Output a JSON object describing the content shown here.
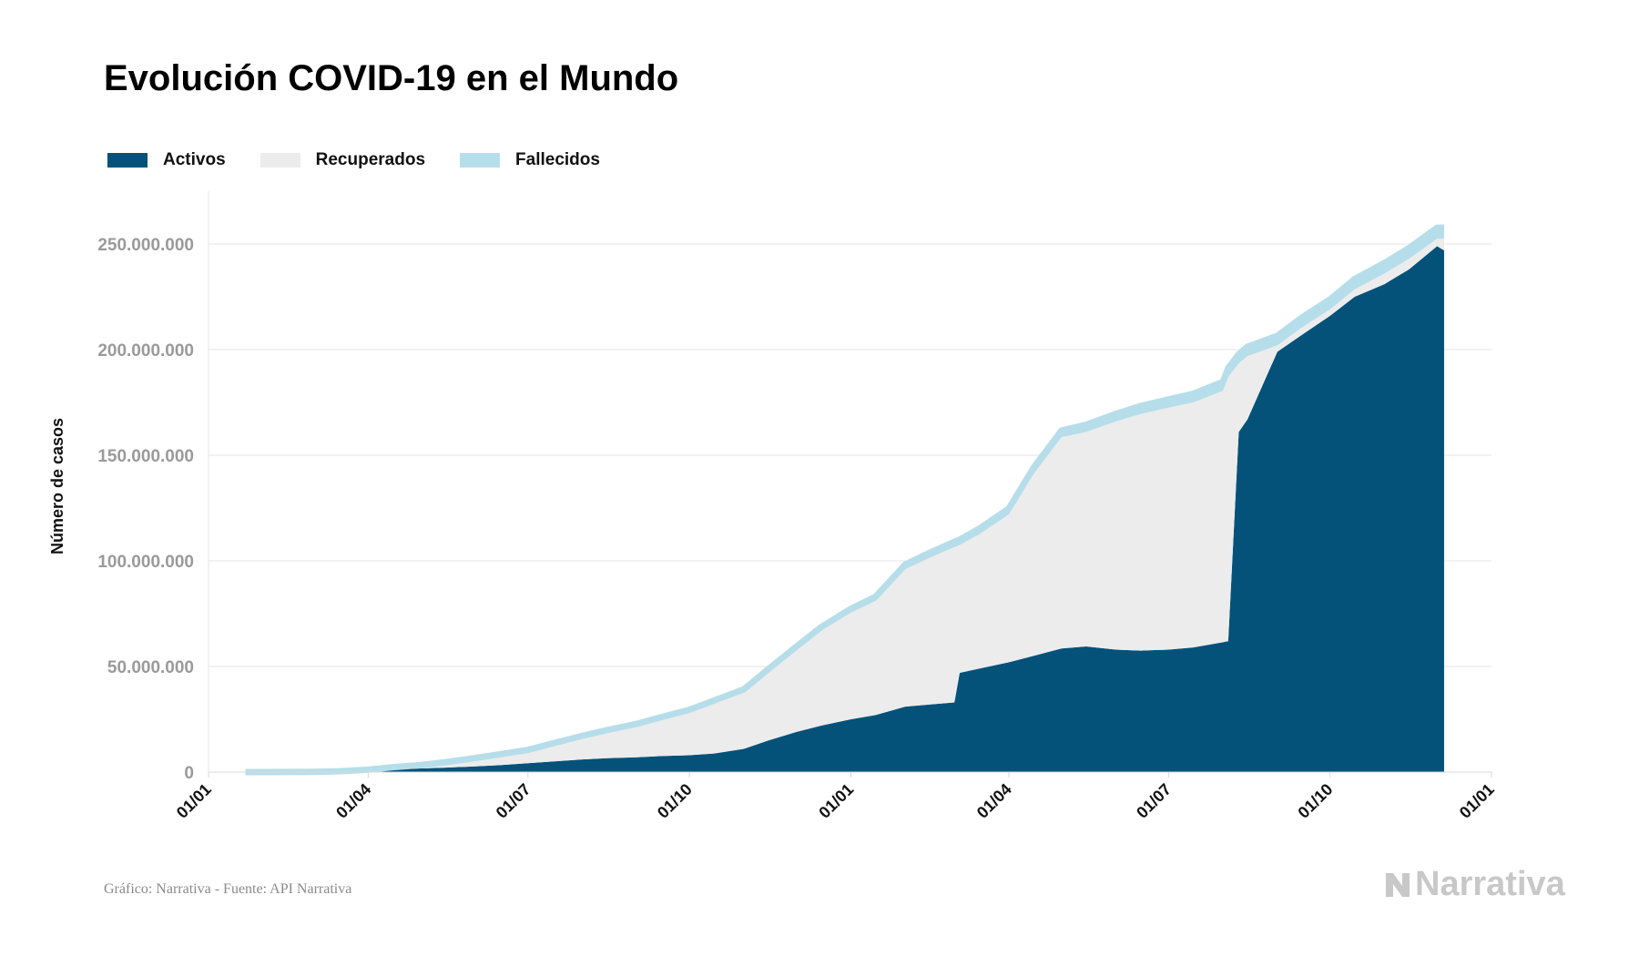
{
  "title": "Evolución COVID-19 en el Mundo",
  "legend": [
    {
      "label": "Activos",
      "color": "#04527a"
    },
    {
      "label": "Recuperados",
      "color": "#ececec"
    },
    {
      "label": "Fallecidos",
      "color": "#b6deea"
    }
  ],
  "footer": {
    "source": "Gráfico: Narrativa - Fuente: API Narrativa",
    "brand": "Narrativa"
  },
  "chart_data": {
    "type": "area",
    "title": "Evolución COVID-19 en el Mundo",
    "ylabel": "Número de casos",
    "xlabel": "",
    "ylim": [
      0,
      275000000
    ],
    "yticks": [
      0,
      50000000,
      100000000,
      150000000,
      200000000,
      250000000
    ],
    "ytick_labels": [
      "0",
      "50.000.000",
      "100.000.000",
      "150.000.000",
      "200.000.000",
      "250.000.000"
    ],
    "xlim": [
      "2020-01-01",
      "2022-01-01"
    ],
    "xticks": [
      "2020-01-01",
      "2020-04-01",
      "2020-07-01",
      "2020-10-01",
      "2021-01-01",
      "2021-04-01",
      "2021-07-01",
      "2021-10-01",
      "2022-01-01"
    ],
    "xtick_labels": [
      "01/01",
      "01/04",
      "01/07",
      "01/10",
      "01/01",
      "01/04",
      "01/07",
      "01/10",
      "01/01"
    ],
    "stacked": true,
    "grid": "horizontal",
    "legend_position": "top-left",
    "x": [
      "2020-01-22",
      "2020-02-15",
      "2020-03-01",
      "2020-03-15",
      "2020-04-01",
      "2020-04-15",
      "2020-05-01",
      "2020-05-15",
      "2020-06-01",
      "2020-06-15",
      "2020-07-01",
      "2020-07-15",
      "2020-08-01",
      "2020-08-15",
      "2020-09-01",
      "2020-09-15",
      "2020-10-01",
      "2020-10-15",
      "2020-11-01",
      "2020-11-15",
      "2020-12-01",
      "2020-12-15",
      "2021-01-01",
      "2021-01-15",
      "2021-02-01",
      "2021-02-15",
      "2021-03-01",
      "2021-03-04",
      "2021-03-15",
      "2021-04-01",
      "2021-04-15",
      "2021-05-01",
      "2021-05-15",
      "2021-06-01",
      "2021-06-15",
      "2021-07-01",
      "2021-07-15",
      "2021-08-01",
      "2021-08-04",
      "2021-08-10",
      "2021-08-15",
      "2021-09-01",
      "2021-09-15",
      "2021-10-01",
      "2021-10-15",
      "2021-11-01",
      "2021-11-15",
      "2021-12-01",
      "2021-12-05"
    ],
    "series": [
      {
        "name": "Activos",
        "color": "#04527a",
        "values": [
          0,
          20000,
          60000,
          200000,
          800000,
          1200000,
          1700000,
          2100000,
          2700000,
          3300000,
          4200000,
          5000000,
          6000000,
          6600000,
          7000000,
          7600000,
          8000000,
          8800000,
          11000000,
          15000000,
          19000000,
          22000000,
          25000000,
          27000000,
          31000000,
          32000000,
          33000000,
          47000000,
          49000000,
          52000000,
          55000000,
          58500000,
          59500000,
          58000000,
          57500000,
          58000000,
          59000000,
          61500000,
          62000000,
          161000000,
          167000000,
          199000000,
          207000000,
          216000000,
          225000000,
          231000000,
          238000000,
          249000000,
          247000000
        ]
      },
      {
        "name": "Recuperados",
        "color": "#ececec",
        "values": [
          0,
          10000,
          60000,
          150000,
          300000,
          1000000,
          1400000,
          2300000,
          3600000,
          4700000,
          5800000,
          8000000,
          10500000,
          12500000,
          15000000,
          17500000,
          20500000,
          24000000,
          27000000,
          32500000,
          39000000,
          45000000,
          50500000,
          54000000,
          65000000,
          69500000,
          73500000,
          60500000,
          63500000,
          70000000,
          86000000,
          100000000,
          101500000,
          108000000,
          112000000,
          114500000,
          116000000,
          119000000,
          125000000,
          32500000,
          30000000,
          3000000,
          3500000,
          3000000,
          3500000,
          5000000,
          5000000,
          3500000,
          5500000
        ]
      },
      {
        "name": "Fallecidos",
        "color": "#b6deea",
        "values": [
          0,
          2000,
          3000,
          10000,
          40000,
          130000,
          230000,
          300000,
          370000,
          430000,
          510000,
          570000,
          680000,
          770000,
          850000,
          930000,
          1000000,
          1090000,
          1190000,
          1300000,
          1460000,
          1620000,
          1800000,
          2000000,
          2250000,
          2410000,
          2530000,
          2550000,
          2650000,
          2800000,
          3000000,
          3200000,
          3400000,
          3600000,
          3800000,
          3950000,
          4080000,
          4250000,
          4280000,
          4350000,
          4400000,
          4550000,
          4700000,
          4800000,
          4900000,
          5000000,
          5100000,
          5200000,
          5250000
        ]
      }
    ]
  }
}
